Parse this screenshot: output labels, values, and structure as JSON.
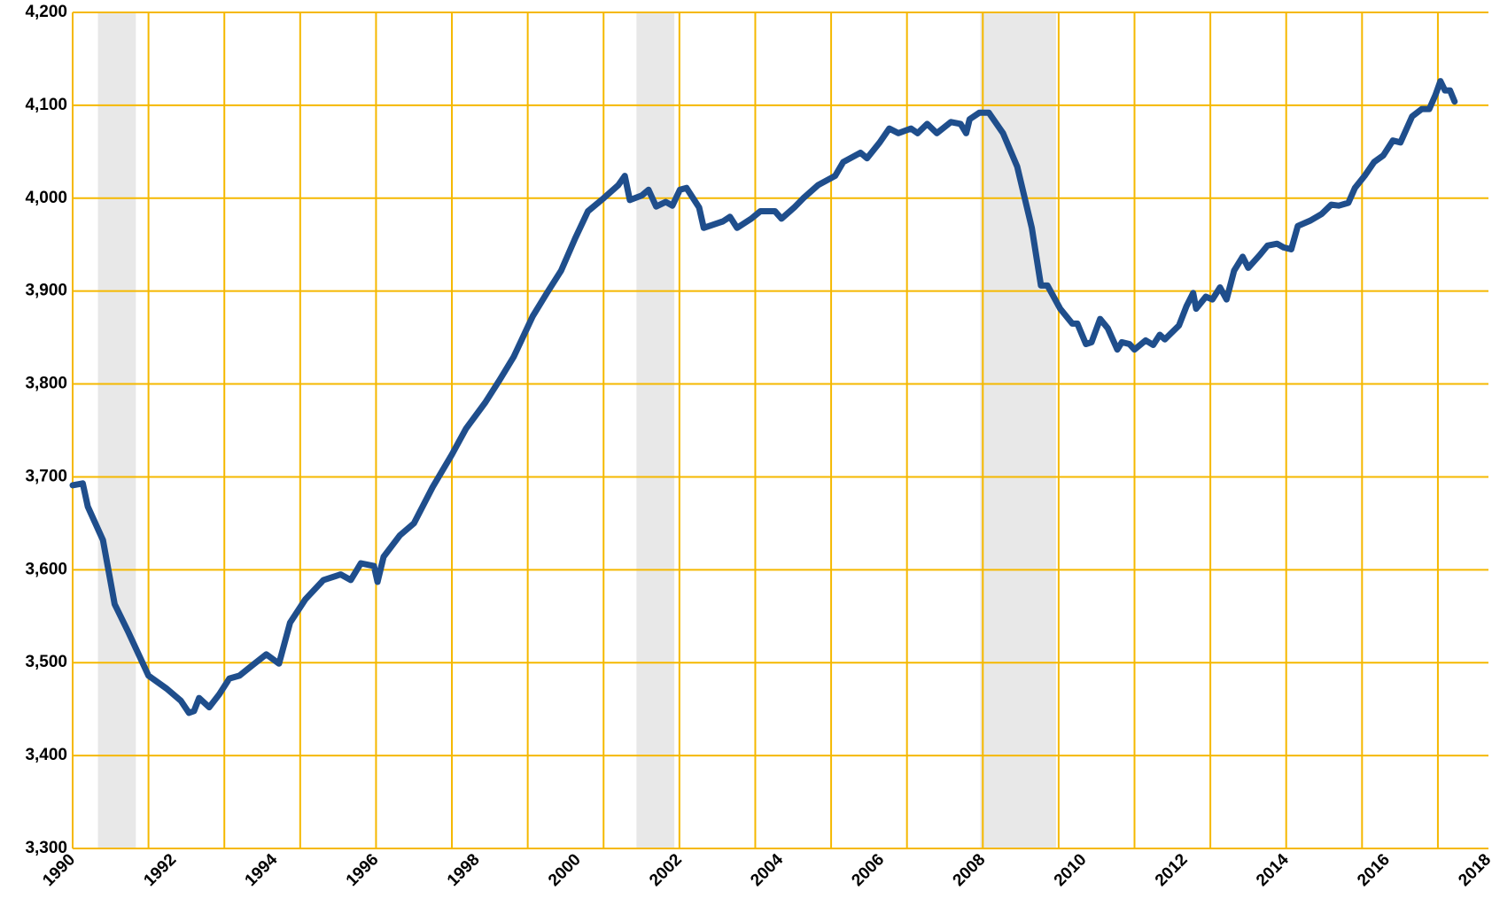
{
  "chart_data": {
    "type": "line",
    "xlim": [
      1990,
      2018
    ],
    "xticks": [
      1990,
      1992,
      1994,
      1996,
      1998,
      2000,
      2002,
      2004,
      2006,
      2008,
      2010,
      2012,
      2014,
      2016,
      2018
    ],
    "xgrid": [
      1990,
      1991.5,
      1993,
      1994.5,
      1996,
      1997.5,
      1999,
      2000.5,
      2002,
      2003.5,
      2005,
      2006.5,
      2008,
      2009.5,
      2011,
      2012.5,
      2014,
      2015.5,
      2017
    ],
    "ylim": [
      3300,
      4200
    ],
    "yticks": [
      {
        "value": 3300,
        "label": "3,300"
      },
      {
        "value": 3400,
        "label": "3,400"
      },
      {
        "value": 3500,
        "label": "3,500"
      },
      {
        "value": 3600,
        "label": "3,600"
      },
      {
        "value": 3700,
        "label": "3,700"
      },
      {
        "value": 3800,
        "label": "3,800"
      },
      {
        "value": 3900,
        "label": "3,900"
      },
      {
        "value": 4000,
        "label": "4,000"
      },
      {
        "value": 4100,
        "label": "4,100"
      },
      {
        "value": 4200,
        "label": "4,200"
      }
    ],
    "grid": true,
    "grid_color": "#f5b800",
    "shaded_regions": [
      [
        1990.5,
        1991.25
      ],
      [
        2001.15,
        2001.9
      ],
      [
        2007.95,
        2009.45
      ]
    ],
    "shade_color": "#e8e8e8",
    "series": [
      {
        "color": "#1f4e8c",
        "x": [
          1990.0,
          1990.2,
          1990.3,
          1990.6,
          1990.83,
          1991.1,
          1991.5,
          1991.86,
          1992.14,
          1992.3,
          1992.4,
          1992.5,
          1992.7,
          1992.9,
          1993.1,
          1993.3,
          1993.55,
          1993.83,
          1994.08,
          1994.3,
          1994.6,
          1994.96,
          1995.3,
          1995.5,
          1995.7,
          1995.96,
          1996.03,
          1996.15,
          1996.47,
          1996.75,
          1997.12,
          1997.5,
          1997.78,
          1998.16,
          1998.44,
          1998.72,
          1999.1,
          1999.38,
          1999.66,
          1999.94,
          2000.19,
          2000.5,
          2000.79,
          2000.92,
          2001.02,
          2001.26,
          2001.39,
          2001.54,
          2001.73,
          2001.86,
          2002.01,
          2002.14,
          2002.39,
          2002.48,
          2002.86,
          2003.0,
          2003.14,
          2003.42,
          2003.6,
          2003.89,
          2004.02,
          2004.27,
          2004.45,
          2004.74,
          2005.08,
          2005.24,
          2005.58,
          2005.71,
          2005.96,
          2006.15,
          2006.33,
          2006.58,
          2006.71,
          2006.9,
          2007.09,
          2007.37,
          2007.56,
          2007.67,
          2007.74,
          2007.93,
          2008.12,
          2008.4,
          2008.68,
          2008.97,
          2009.15,
          2009.28,
          2009.53,
          2009.77,
          2009.87,
          2010.04,
          2010.15,
          2010.32,
          2010.47,
          2010.66,
          2010.75,
          2010.9,
          2011.0,
          2011.22,
          2011.37,
          2011.5,
          2011.6,
          2011.88,
          2012.03,
          2012.16,
          2012.22,
          2012.41,
          2012.54,
          2012.69,
          2012.82,
          2012.97,
          2013.14,
          2013.25,
          2013.48,
          2013.63,
          2013.82,
          2013.95,
          2014.1,
          2014.23,
          2014.48,
          2014.7,
          2014.89,
          2015.04,
          2015.23,
          2015.36,
          2015.55,
          2015.74,
          2015.92,
          2016.11,
          2016.26,
          2016.49,
          2016.68,
          2016.83,
          2016.95,
          2017.05,
          2017.14,
          2017.24,
          2017.33
        ],
        "values": [
          3691,
          3693,
          3668,
          3632,
          3563,
          3533,
          3486,
          3472,
          3459,
          3446,
          3448,
          3462,
          3452,
          3466,
          3483,
          3486,
          3497,
          3509,
          3499,
          3543,
          3568,
          3589,
          3595,
          3589,
          3607,
          3604,
          3587,
          3614,
          3637,
          3650,
          3689,
          3724,
          3752,
          3780,
          3804,
          3829,
          3873,
          3898,
          3922,
          3957,
          3986,
          4000,
          4014,
          4024,
          3998,
          4003,
          4009,
          3991,
          3996,
          3992,
          4009,
          4011,
          3990,
          3968,
          3975,
          3980,
          3968,
          3978,
          3986,
          3986,
          3978,
          3990,
          4000,
          4014,
          4024,
          4039,
          4049,
          4043,
          4060,
          4075,
          4070,
          4075,
          4070,
          4080,
          4070,
          4082,
          4080,
          4070,
          4085,
          4092,
          4092,
          4070,
          4034,
          3968,
          3906,
          3906,
          3881,
          3865,
          3865,
          3843,
          3845,
          3870,
          3860,
          3837,
          3845,
          3843,
          3837,
          3847,
          3842,
          3853,
          3848,
          3863,
          3884,
          3898,
          3881,
          3894,
          3891,
          3904,
          3891,
          3922,
          3937,
          3925,
          3939,
          3949,
          3951,
          3947,
          3945,
          3970,
          3976,
          3983,
          3993,
          3992,
          3995,
          4011,
          4024,
          4039,
          4046,
          4062,
          4060,
          4088,
          4096,
          4096,
          4111,
          4126,
          4116,
          4116,
          4104
        ]
      }
    ]
  }
}
